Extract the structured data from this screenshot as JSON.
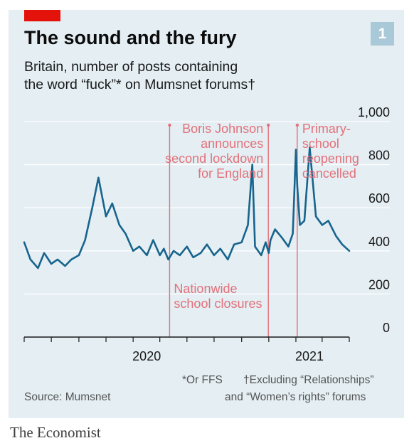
{
  "header": {
    "title": "The sound and the fury",
    "subtitle_line1": "Britain, number of posts containing",
    "subtitle_line2": "the word “fuck”* on Mumsnet forums†",
    "badge": "1"
  },
  "footer": {
    "note1": "*Or FFS",
    "note2_line1": "†Excluding “Relationships”",
    "note2_line2": "and “Women’s rights” forums",
    "source": "Source: Mumsnet",
    "brand": "The Economist"
  },
  "colors": {
    "line": "#17648d",
    "annotation": "#e3717a",
    "grid": "#ffffff",
    "axis": "#1a1a1a",
    "background": "#e4eef3",
    "brand_red": "#e3120b"
  },
  "chart_data": {
    "type": "line",
    "x_start": "2019-05-01",
    "x_end": "2021-05-01",
    "x_ticks": [
      "2019-05-01",
      "2019-07-01",
      "2019-09-01",
      "2019-11-01",
      "2020-01-01",
      "2020-03-01",
      "2020-05-01",
      "2020-07-01",
      "2020-09-01",
      "2020-11-01",
      "2021-01-01",
      "2021-03-01",
      "2021-05-01"
    ],
    "x_tick_labels": [
      {
        "label": "2020",
        "date": "2020-01-01"
      },
      {
        "label": "2021",
        "date": "2021-01-01"
      }
    ],
    "ylim": [
      0,
      1000
    ],
    "y_ticks": [
      0,
      200,
      400,
      600,
      800,
      1000
    ],
    "y_tick_labels": [
      "0",
      "200",
      "400",
      "600",
      "800",
      "1,000"
    ],
    "grid": true,
    "series": [
      {
        "x": [
          "2019-05-01",
          "2019-05-15",
          "2019-06-01",
          "2019-06-15",
          "2019-07-01",
          "2019-07-15",
          "2019-08-01",
          "2019-08-15",
          "2019-09-01",
          "2019-09-15",
          "2019-10-01",
          "2019-10-15",
          "2019-11-01",
          "2019-11-15",
          "2019-12-01",
          "2019-12-15",
          "2020-01-01",
          "2020-01-15",
          "2020-02-01",
          "2020-02-15",
          "2020-03-01",
          "2020-03-10",
          "2020-03-20",
          "2020-04-01",
          "2020-04-15",
          "2020-05-01",
          "2020-05-15",
          "2020-06-01",
          "2020-06-15",
          "2020-07-01",
          "2020-07-15",
          "2020-08-01",
          "2020-08-15",
          "2020-09-01",
          "2020-09-15",
          "2020-09-25",
          "2020-10-01",
          "2020-10-15",
          "2020-10-25",
          "2020-11-01",
          "2020-11-05",
          "2020-11-15",
          "2020-12-01",
          "2020-12-15",
          "2020-12-25",
          "2021-01-01",
          "2021-01-04",
          "2021-01-10",
          "2021-01-20",
          "2021-02-01",
          "2021-02-15",
          "2021-03-01",
          "2021-03-15",
          "2021-04-01",
          "2021-04-15",
          "2021-05-01"
        ],
        "y": [
          440,
          360,
          320,
          390,
          340,
          360,
          330,
          360,
          380,
          450,
          600,
          740,
          560,
          620,
          520,
          480,
          400,
          420,
          380,
          450,
          380,
          410,
          360,
          400,
          380,
          420,
          370,
          390,
          430,
          380,
          410,
          360,
          430,
          440,
          520,
          800,
          420,
          380,
          440,
          390,
          450,
          500,
          460,
          420,
          480,
          870,
          700,
          520,
          540,
          880,
          560,
          520,
          540,
          470,
          430,
          400
        ]
      }
    ],
    "annotations": [
      {
        "label_lines": [
          "Nationwide",
          "school closures"
        ],
        "date": "2020-03-23"
      },
      {
        "label_lines": [
          "Boris Johnson",
          "announces",
          "second lockdown",
          "for England"
        ],
        "date": "2020-10-31"
      },
      {
        "label_lines": [
          "Primary-",
          "school",
          "reopening",
          "cancelled"
        ],
        "date": "2021-01-04"
      }
    ]
  }
}
